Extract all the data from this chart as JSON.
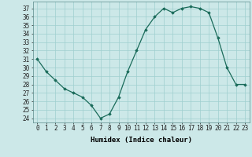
{
  "x": [
    0,
    1,
    2,
    3,
    4,
    5,
    6,
    7,
    8,
    9,
    10,
    11,
    12,
    13,
    14,
    15,
    16,
    17,
    18,
    19,
    20,
    21,
    22,
    23
  ],
  "y": [
    31,
    29.5,
    28.5,
    27.5,
    27,
    26.5,
    25.5,
    24,
    24.5,
    26.5,
    29.5,
    32,
    34.5,
    36,
    37,
    36.5,
    37,
    37.2,
    37,
    36.5,
    33.5,
    30,
    28,
    28
  ],
  "xlabel": "Humidex (Indice chaleur)",
  "xlim": [
    -0.5,
    23.5
  ],
  "ylim": [
    23.5,
    37.8
  ],
  "yticks": [
    24,
    25,
    26,
    27,
    28,
    29,
    30,
    31,
    32,
    33,
    34,
    35,
    36,
    37
  ],
  "xticks": [
    0,
    1,
    2,
    3,
    4,
    5,
    6,
    7,
    8,
    9,
    10,
    11,
    12,
    13,
    14,
    15,
    16,
    17,
    18,
    19,
    20,
    21,
    22,
    23
  ],
  "line_color": "#1a6b5a",
  "marker": "D",
  "marker_size": 1.8,
  "bg_color": "#cce8e8",
  "grid_color": "#9fcfcf",
  "label_fontsize": 6.5,
  "tick_fontsize": 5.5
}
